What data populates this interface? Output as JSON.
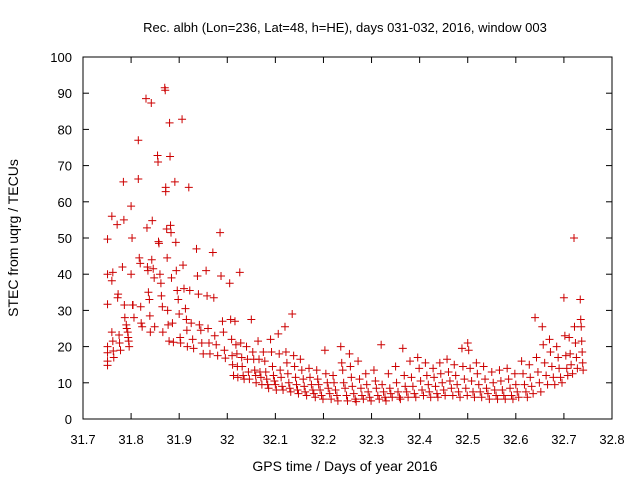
{
  "chart_data": {
    "type": "scatter",
    "title": "Rec. albh (Lon=236, Lat=48, h=HE), days 031-032, 2016, window 003",
    "xlabel": "GPS time / Days of year 2016",
    "ylabel": "STEC from uqrg / TECUs",
    "xlim": [
      31.7,
      32.8
    ],
    "ylim": [
      0,
      100
    ],
    "xticks": [
      31.7,
      31.8,
      31.9,
      32.0,
      32.1,
      32.2,
      32.3,
      32.4,
      32.5,
      32.6,
      32.7,
      32.8
    ],
    "yticks": [
      0,
      10,
      20,
      30,
      40,
      50,
      60,
      70,
      80,
      90,
      100
    ],
    "xtick_labels": [
      "31.7",
      "31.8",
      "31.9",
      "32",
      "32.1",
      "32.2",
      "32.3",
      "32.4",
      "32.5",
      "32.6",
      "32.7",
      "32.8"
    ],
    "ytick_labels": [
      "0",
      "10",
      "20",
      "30",
      "40",
      "50",
      "60",
      "70",
      "80",
      "90",
      "100"
    ],
    "grid": false,
    "marker": "+",
    "colors": {
      "points": "#cc0000",
      "axes": "#000000"
    },
    "points": [
      [
        31.751,
        49.7
      ],
      [
        31.751,
        40.0
      ],
      [
        31.751,
        31.7
      ],
      [
        31.751,
        20.0
      ],
      [
        31.751,
        18.3
      ],
      [
        31.751,
        16.0
      ],
      [
        31.751,
        14.8
      ],
      [
        31.76,
        56.0
      ],
      [
        31.762,
        40.5
      ],
      [
        31.76,
        38.2
      ],
      [
        31.76,
        24.0
      ],
      [
        31.762,
        21.5
      ],
      [
        31.763,
        18.8
      ],
      [
        31.764,
        17.0
      ],
      [
        31.771,
        53.7
      ],
      [
        31.773,
        34.5
      ],
      [
        31.772,
        33.5
      ],
      [
        31.775,
        23.2
      ],
      [
        31.776,
        21.0
      ],
      [
        31.778,
        19.0
      ],
      [
        31.784,
        65.5
      ],
      [
        31.785,
        55.0
      ],
      [
        31.782,
        42.0
      ],
      [
        31.786,
        31.5
      ],
      [
        31.787,
        28.0
      ],
      [
        31.79,
        26.0
      ],
      [
        31.791,
        25.0
      ],
      [
        31.793,
        24.0
      ],
      [
        31.794,
        22.5
      ],
      [
        31.795,
        21.5
      ],
      [
        31.796,
        20.0
      ],
      [
        31.8,
        58.8
      ],
      [
        31.802,
        50.0
      ],
      [
        31.8,
        40.0
      ],
      [
        31.803,
        31.5
      ],
      [
        31.804,
        31.5
      ],
      [
        31.806,
        28.0
      ],
      [
        31.815,
        77.0
      ],
      [
        31.815,
        66.3
      ],
      [
        31.817,
        44.5
      ],
      [
        31.819,
        43.0
      ],
      [
        31.82,
        31.0
      ],
      [
        31.821,
        26.5
      ],
      [
        31.823,
        25.5
      ],
      [
        31.831,
        88.5
      ],
      [
        31.833,
        52.8
      ],
      [
        31.834,
        42.0
      ],
      [
        31.835,
        41.0
      ],
      [
        31.836,
        35.0
      ],
      [
        31.838,
        33.0
      ],
      [
        31.839,
        28.5
      ],
      [
        31.84,
        24.0
      ],
      [
        31.842,
        87.3
      ],
      [
        31.844,
        54.8
      ],
      [
        31.843,
        44.0
      ],
      [
        31.846,
        41.5
      ],
      [
        31.848,
        39.0
      ],
      [
        31.849,
        25.5
      ],
      [
        31.855,
        72.8
      ],
      [
        31.856,
        71.0
      ],
      [
        31.857,
        49.0
      ],
      [
        31.858,
        48.5
      ],
      [
        31.86,
        40.0
      ],
      [
        31.862,
        37.5
      ],
      [
        31.863,
        34.0
      ],
      [
        31.865,
        31.0
      ],
      [
        31.866,
        24.0
      ],
      [
        31.87,
        91.5
      ],
      [
        31.871,
        90.8
      ],
      [
        31.872,
        64.0
      ],
      [
        31.872,
        62.8
      ],
      [
        31.874,
        52.5
      ],
      [
        31.875,
        44.5
      ],
      [
        31.876,
        30.0
      ],
      [
        31.877,
        26.0
      ],
      [
        31.879,
        21.5
      ],
      [
        31.88,
        81.8
      ],
      [
        31.881,
        72.5
      ],
      [
        31.882,
        53.5
      ],
      [
        31.883,
        51.5
      ],
      [
        31.884,
        39.0
      ],
      [
        31.886,
        26.5
      ],
      [
        31.888,
        21.2
      ],
      [
        31.891,
        65.5
      ],
      [
        31.893,
        48.8
      ],
      [
        31.894,
        41.0
      ],
      [
        31.896,
        35.5
      ],
      [
        31.898,
        33.0
      ],
      [
        31.9,
        29.0
      ],
      [
        31.902,
        22.5
      ],
      [
        31.903,
        21.0
      ],
      [
        31.906,
        82.8
      ],
      [
        31.908,
        42.5
      ],
      [
        31.91,
        36.0
      ],
      [
        31.913,
        30.5
      ],
      [
        31.915,
        27.5
      ],
      [
        31.916,
        24.5
      ],
      [
        31.917,
        20.0
      ],
      [
        31.92,
        64.0
      ],
      [
        31.922,
        35.5
      ],
      [
        31.925,
        26.5
      ],
      [
        31.928,
        22.0
      ],
      [
        31.93,
        19.5
      ],
      [
        31.936,
        47.0
      ],
      [
        31.938,
        39.5
      ],
      [
        31.94,
        34.5
      ],
      [
        31.942,
        26.0
      ],
      [
        31.945,
        24.5
      ],
      [
        31.947,
        21.0
      ],
      [
        31.95,
        18.0
      ],
      [
        31.956,
        41.0
      ],
      [
        31.958,
        34.0
      ],
      [
        31.96,
        25.0
      ],
      [
        31.962,
        21.0
      ],
      [
        31.964,
        18.0
      ],
      [
        31.97,
        46.0
      ],
      [
        31.972,
        33.5
      ],
      [
        31.974,
        23.0
      ],
      [
        31.977,
        20.5
      ],
      [
        31.98,
        17.5
      ],
      [
        31.985,
        51.5
      ],
      [
        31.987,
        39.5
      ],
      [
        31.99,
        27.0
      ],
      [
        31.992,
        24.0
      ],
      [
        31.994,
        19.0
      ],
      [
        31.996,
        16.8
      ],
      [
        32.005,
        37.5
      ],
      [
        32.007,
        27.5
      ],
      [
        32.009,
        22.0
      ],
      [
        32.01,
        17.5
      ],
      [
        32.011,
        15.0
      ],
      [
        32.013,
        12.0
      ],
      [
        32.016,
        27.0
      ],
      [
        32.018,
        20.5
      ],
      [
        32.02,
        18.0
      ],
      [
        32.021,
        14.5
      ],
      [
        32.022,
        11.5
      ],
      [
        32.026,
        40.5
      ],
      [
        32.028,
        21.0
      ],
      [
        32.03,
        17.0
      ],
      [
        32.031,
        14.5
      ],
      [
        32.033,
        12.0
      ],
      [
        32.035,
        11.0
      ],
      [
        32.04,
        20.0
      ],
      [
        32.042,
        16.5
      ],
      [
        32.044,
        13.0
      ],
      [
        32.046,
        11.0
      ],
      [
        32.05,
        27.5
      ],
      [
        32.053,
        18.5
      ],
      [
        32.055,
        16.5
      ],
      [
        32.057,
        13.5
      ],
      [
        32.059,
        12.0
      ],
      [
        32.06,
        10.0
      ],
      [
        32.064,
        21.5
      ],
      [
        32.066,
        16.5
      ],
      [
        32.068,
        13.0
      ],
      [
        32.07,
        11.5
      ],
      [
        32.072,
        9.5
      ],
      [
        32.075,
        18.5
      ],
      [
        32.078,
        16.0
      ],
      [
        32.08,
        13.0
      ],
      [
        32.082,
        11.0
      ],
      [
        32.084,
        9.5
      ],
      [
        32.086,
        8.5
      ],
      [
        32.09,
        22.0
      ],
      [
        32.092,
        18.5
      ],
      [
        32.094,
        14.5
      ],
      [
        32.096,
        12.0
      ],
      [
        32.098,
        10.5
      ],
      [
        32.1,
        9.5
      ],
      [
        32.102,
        8.0
      ],
      [
        32.106,
        23.5
      ],
      [
        32.108,
        18.0
      ],
      [
        32.11,
        13.5
      ],
      [
        32.112,
        11.5
      ],
      [
        32.114,
        9.0
      ],
      [
        32.116,
        8.0
      ],
      [
        32.12,
        25.5
      ],
      [
        32.122,
        18.5
      ],
      [
        32.124,
        15.5
      ],
      [
        32.126,
        12.5
      ],
      [
        32.128,
        10.0
      ],
      [
        32.13,
        8.5
      ],
      [
        32.132,
        7.5
      ],
      [
        32.135,
        29.0
      ],
      [
        32.138,
        17.5
      ],
      [
        32.14,
        14.5
      ],
      [
        32.142,
        11.5
      ],
      [
        32.144,
        9.5
      ],
      [
        32.146,
        8.0
      ],
      [
        32.148,
        7.0
      ],
      [
        32.152,
        16.5
      ],
      [
        32.155,
        13.5
      ],
      [
        32.158,
        11.0
      ],
      [
        32.16,
        9.0
      ],
      [
        32.162,
        7.5
      ],
      [
        32.165,
        6.5
      ],
      [
        32.17,
        14.0
      ],
      [
        32.172,
        11.5
      ],
      [
        32.175,
        9.5
      ],
      [
        32.178,
        8.0
      ],
      [
        32.18,
        7.0
      ],
      [
        32.183,
        6.0
      ],
      [
        32.186,
        13.5
      ],
      [
        32.188,
        11.0
      ],
      [
        32.19,
        9.5
      ],
      [
        32.193,
        8.0
      ],
      [
        32.196,
        6.5
      ],
      [
        32.199,
        5.5
      ],
      [
        32.203,
        19.0
      ],
      [
        32.205,
        12.5
      ],
      [
        32.208,
        10.0
      ],
      [
        32.21,
        8.5
      ],
      [
        32.213,
        7.0
      ],
      [
        32.216,
        5.5
      ],
      [
        32.22,
        12.0
      ],
      [
        32.222,
        10.0
      ],
      [
        32.225,
        8.0
      ],
      [
        32.228,
        6.5
      ],
      [
        32.23,
        5.0
      ],
      [
        32.236,
        20.0
      ],
      [
        32.238,
        15.5
      ],
      [
        32.24,
        13.5
      ],
      [
        32.242,
        10.0
      ],
      [
        32.245,
        8.5
      ],
      [
        32.248,
        6.5
      ],
      [
        32.25,
        5.0
      ],
      [
        32.254,
        18.0
      ],
      [
        32.256,
        14.5
      ],
      [
        32.258,
        11.5
      ],
      [
        32.26,
        9.0
      ],
      [
        32.263,
        7.0
      ],
      [
        32.266,
        5.5
      ],
      [
        32.268,
        4.8
      ],
      [
        32.272,
        16.0
      ],
      [
        32.275,
        11.0
      ],
      [
        32.278,
        8.5
      ],
      [
        32.28,
        6.5
      ],
      [
        32.283,
        5.5
      ],
      [
        32.288,
        12.5
      ],
      [
        32.29,
        9.5
      ],
      [
        32.293,
        7.5
      ],
      [
        32.296,
        6.0
      ],
      [
        32.299,
        5.0
      ],
      [
        32.305,
        13.5
      ],
      [
        32.308,
        10.5
      ],
      [
        32.31,
        8.5
      ],
      [
        32.313,
        6.5
      ],
      [
        32.316,
        5.5
      ],
      [
        32.32,
        20.5
      ],
      [
        32.322,
        9.5
      ],
      [
        32.325,
        7.5
      ],
      [
        32.328,
        6.0
      ],
      [
        32.33,
        5.0
      ],
      [
        32.335,
        12.5
      ],
      [
        32.338,
        8.5
      ],
      [
        32.34,
        7.0
      ],
      [
        32.343,
        6.0
      ],
      [
        32.35,
        14.5
      ],
      [
        32.352,
        10.0
      ],
      [
        32.355,
        7.5
      ],
      [
        32.358,
        6.0
      ],
      [
        32.36,
        5.5
      ],
      [
        32.365,
        19.5
      ],
      [
        32.368,
        12.0
      ],
      [
        32.37,
        9.0
      ],
      [
        32.373,
        7.5
      ],
      [
        32.376,
        6.0
      ],
      [
        32.38,
        16.0
      ],
      [
        32.383,
        11.5
      ],
      [
        32.386,
        9.0
      ],
      [
        32.389,
        7.0
      ],
      [
        32.392,
        6.0
      ],
      [
        32.396,
        17.0
      ],
      [
        32.399,
        14.0
      ],
      [
        32.402,
        10.5
      ],
      [
        32.405,
        8.0
      ],
      [
        32.408,
        6.5
      ],
      [
        32.412,
        15.5
      ],
      [
        32.415,
        12.0
      ],
      [
        32.418,
        9.5
      ],
      [
        32.42,
        7.5
      ],
      [
        32.423,
        6.0
      ],
      [
        32.428,
        14.0
      ],
      [
        32.43,
        11.5
      ],
      [
        32.433,
        9.0
      ],
      [
        32.436,
        7.0
      ],
      [
        32.438,
        6.0
      ],
      [
        32.442,
        15.5
      ],
      [
        32.444,
        12.5
      ],
      [
        32.447,
        10.0
      ],
      [
        32.45,
        8.0
      ],
      [
        32.453,
        6.5
      ],
      [
        32.457,
        16.5
      ],
      [
        32.46,
        13.0
      ],
      [
        32.463,
        10.5
      ],
      [
        32.466,
        8.5
      ],
      [
        32.469,
        6.5
      ],
      [
        32.472,
        15.0
      ],
      [
        32.475,
        12.0
      ],
      [
        32.478,
        9.5
      ],
      [
        32.481,
        7.5
      ],
      [
        32.484,
        6.0
      ],
      [
        32.488,
        19.5
      ],
      [
        32.49,
        14.5
      ],
      [
        32.493,
        11.0
      ],
      [
        32.496,
        8.5
      ],
      [
        32.499,
        6.5
      ],
      [
        32.5,
        21.0
      ],
      [
        32.502,
        19.0
      ],
      [
        32.505,
        14.0
      ],
      [
        32.508,
        10.5
      ],
      [
        32.511,
        7.5
      ],
      [
        32.514,
        6.0
      ],
      [
        32.518,
        15.5
      ],
      [
        32.52,
        12.5
      ],
      [
        32.523,
        9.5
      ],
      [
        32.526,
        7.5
      ],
      [
        32.529,
        6.0
      ],
      [
        32.533,
        14.5
      ],
      [
        32.536,
        11.0
      ],
      [
        32.539,
        8.5
      ],
      [
        32.542,
        7.0
      ],
      [
        32.545,
        5.5
      ],
      [
        32.55,
        13.0
      ],
      [
        32.553,
        10.0
      ],
      [
        32.556,
        8.0
      ],
      [
        32.559,
        6.5
      ],
      [
        32.562,
        5.5
      ],
      [
        32.566,
        13.5
      ],
      [
        32.569,
        10.5
      ],
      [
        32.572,
        8.0
      ],
      [
        32.575,
        6.5
      ],
      [
        32.578,
        5.5
      ],
      [
        32.582,
        14.0
      ],
      [
        32.585,
        11.0
      ],
      [
        32.588,
        8.5
      ],
      [
        32.591,
        6.5
      ],
      [
        32.594,
        5.5
      ],
      [
        32.598,
        12.5
      ],
      [
        32.6,
        9.5
      ],
      [
        32.603,
        7.5
      ],
      [
        32.606,
        6.0
      ],
      [
        32.612,
        16.0
      ],
      [
        32.615,
        12.5
      ],
      [
        32.618,
        9.5
      ],
      [
        32.621,
        7.5
      ],
      [
        32.624,
        6.0
      ],
      [
        32.628,
        15.0
      ],
      [
        32.63,
        11.5
      ],
      [
        32.633,
        9.0
      ],
      [
        32.636,
        7.0
      ],
      [
        32.64,
        28.0
      ],
      [
        32.643,
        17.0
      ],
      [
        32.646,
        13.0
      ],
      [
        32.649,
        10.0
      ],
      [
        32.652,
        7.5
      ],
      [
        32.655,
        25.5
      ],
      [
        32.657,
        20.5
      ],
      [
        32.66,
        15.5
      ],
      [
        32.663,
        12.0
      ],
      [
        32.666,
        9.5
      ],
      [
        32.67,
        22.0
      ],
      [
        32.672,
        18.5
      ],
      [
        32.675,
        14.5
      ],
      [
        32.678,
        11.5
      ],
      [
        32.681,
        9.5
      ],
      [
        32.685,
        20.0
      ],
      [
        32.688,
        17.0
      ],
      [
        32.69,
        14.0
      ],
      [
        32.693,
        11.5
      ],
      [
        32.696,
        10.0
      ],
      [
        32.7,
        33.5
      ],
      [
        32.702,
        23.0
      ],
      [
        32.704,
        17.5
      ],
      [
        32.706,
        14.0
      ],
      [
        32.708,
        12.0
      ],
      [
        32.711,
        22.5
      ],
      [
        32.713,
        18.0
      ],
      [
        32.715,
        15.0
      ],
      [
        32.718,
        12.5
      ],
      [
        32.721,
        50.0
      ],
      [
        32.722,
        25.5
      ],
      [
        32.724,
        21.0
      ],
      [
        32.726,
        17.0
      ],
      [
        32.728,
        14.0
      ],
      [
        32.734,
        33.0
      ],
      [
        32.735,
        27.5
      ],
      [
        32.736,
        25.5
      ],
      [
        32.737,
        21.5
      ],
      [
        32.738,
        18.5
      ],
      [
        32.739,
        15.5
      ],
      [
        32.74,
        13.5
      ]
    ]
  }
}
